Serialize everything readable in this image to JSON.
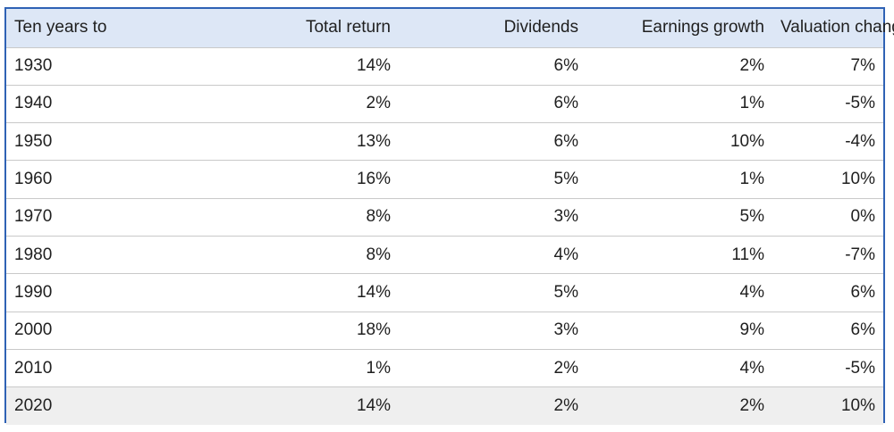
{
  "chart_data": {
    "type": "table",
    "columns": [
      "Ten years to",
      "Total return",
      "Dividends",
      "Earnings growth",
      "Valuation change"
    ],
    "rows": [
      [
        "1930",
        "14%",
        "6%",
        "2%",
        "7%"
      ],
      [
        "1940",
        "2%",
        "6%",
        "1%",
        "-5%"
      ],
      [
        "1950",
        "13%",
        "6%",
        "10%",
        "-4%"
      ],
      [
        "1960",
        "16%",
        "5%",
        "1%",
        "10%"
      ],
      [
        "1970",
        "8%",
        "3%",
        "5%",
        "0%"
      ],
      [
        "1980",
        "8%",
        "4%",
        "11%",
        "-7%"
      ],
      [
        "1990",
        "14%",
        "5%",
        "4%",
        "6%"
      ],
      [
        "2000",
        "18%",
        "3%",
        "9%",
        "6%"
      ],
      [
        "2010",
        "1%",
        "2%",
        "4%",
        "-5%"
      ],
      [
        "2020",
        "14%",
        "2%",
        "2%",
        "10%"
      ]
    ]
  },
  "colors": {
    "header_background": "#dde7f6",
    "border": "#2f62b5",
    "last_row_background": "#efefef"
  }
}
